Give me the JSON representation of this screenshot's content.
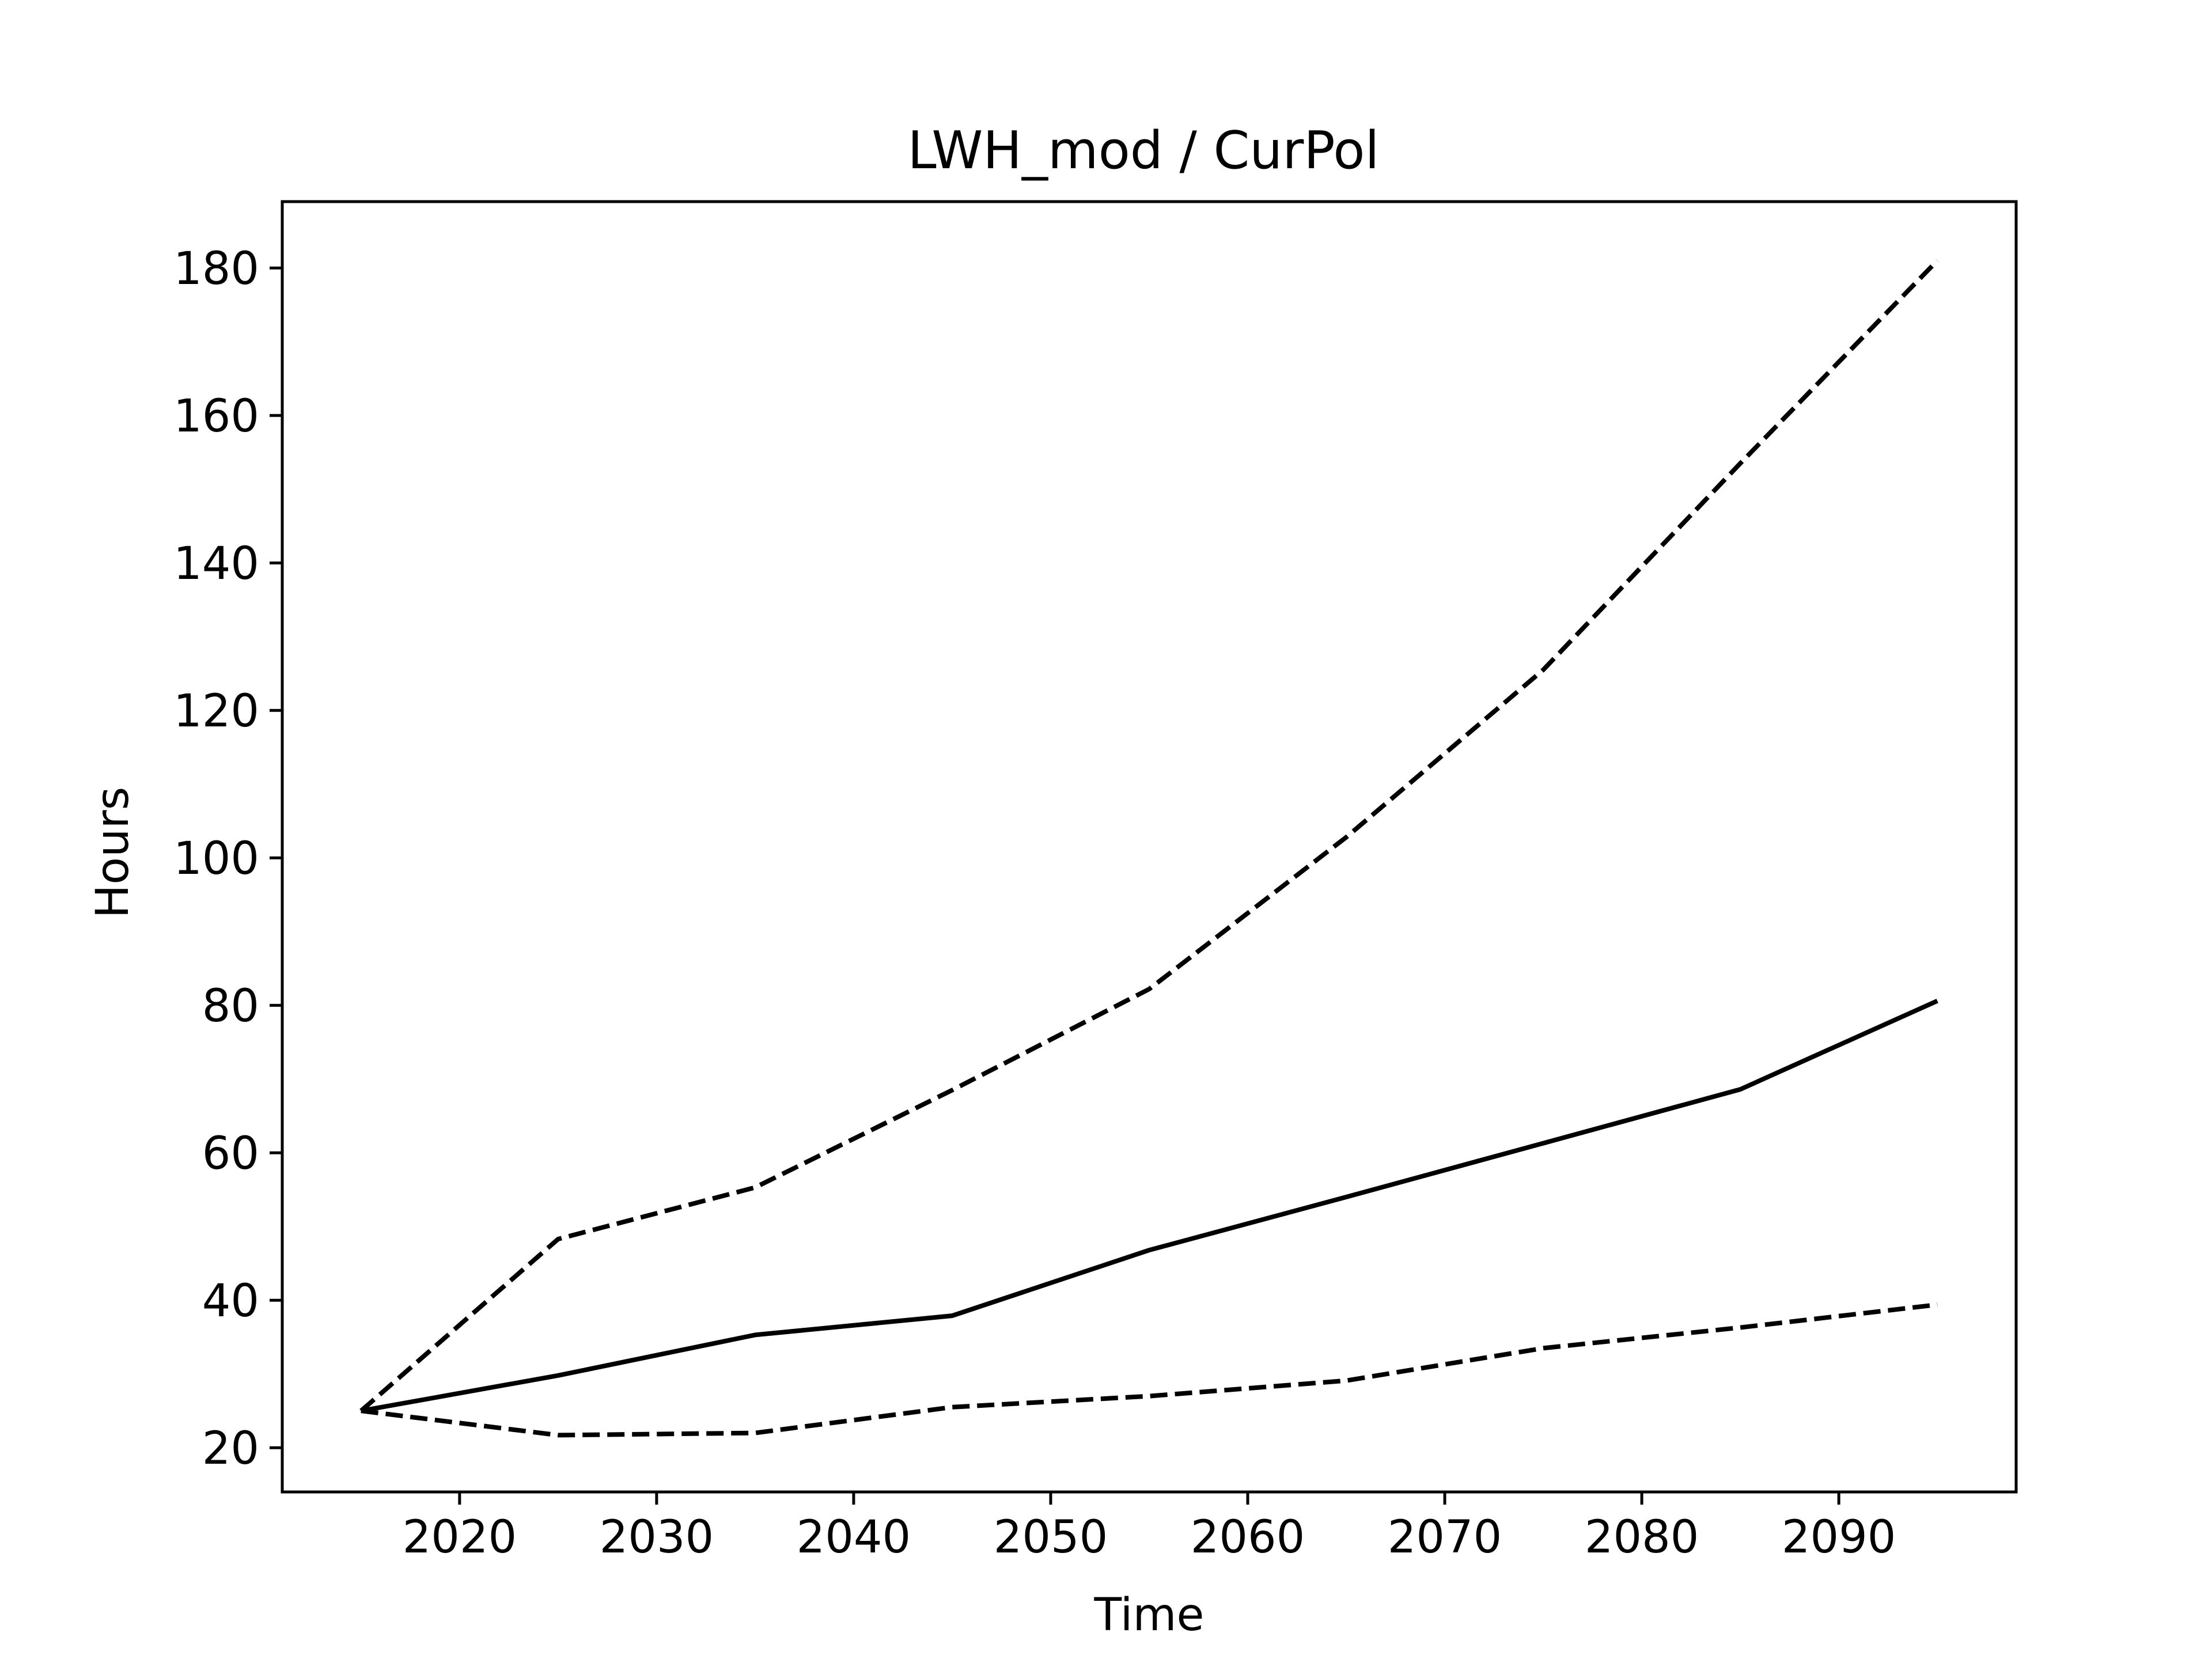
{
  "chart_data": {
    "type": "line",
    "title": "LWH_mod / CurPol",
    "xlabel": "Time",
    "ylabel": "Hours",
    "xlim": [
      2011,
      2099
    ],
    "ylim": [
      14,
      189
    ],
    "xticks": [
      2020,
      2030,
      2040,
      2050,
      2060,
      2070,
      2080,
      2090
    ],
    "yticks": [
      20,
      40,
      60,
      80,
      100,
      120,
      140,
      160,
      180
    ],
    "grid": false,
    "x": [
      2015,
      2025,
      2035,
      2045,
      2055,
      2065,
      2075,
      2085,
      2095
    ],
    "series": [
      {
        "style": "dashed",
        "color": "#000000",
        "values": [
          25,
          48.3,
          55.3,
          68.5,
          82.2,
          102.8,
          125.5,
          153.5,
          181
        ]
      },
      {
        "style": "solid",
        "color": "#000000",
        "values": [
          25,
          29.8,
          35.3,
          37.9,
          46.8,
          54,
          61.3,
          68.6,
          80.6
        ]
      },
      {
        "style": "dashed",
        "color": "#000000",
        "values": [
          25,
          21.7,
          22,
          25.5,
          27,
          29.1,
          33.5,
          36.3,
          39.4
        ]
      }
    ]
  }
}
